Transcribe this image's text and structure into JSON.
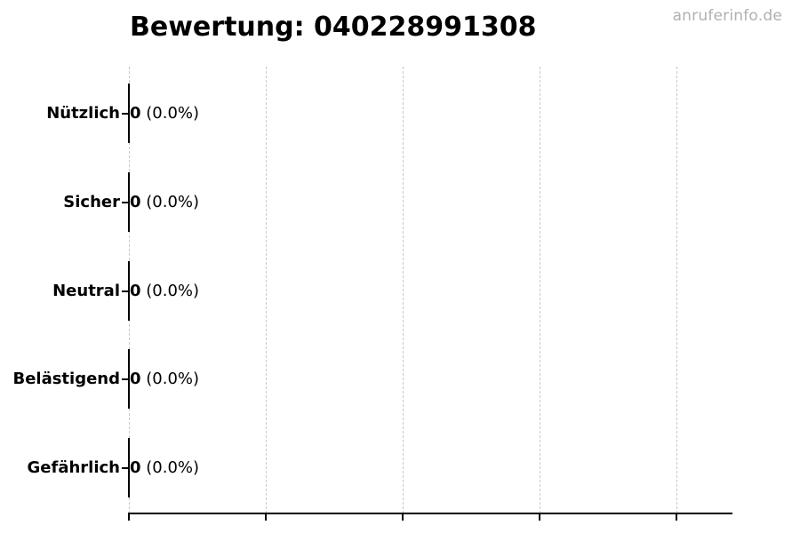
{
  "page": {
    "background": "#ffffff"
  },
  "watermark": {
    "text": "anruferinfo.de",
    "color": "#b0b0b0"
  },
  "chart_data": {
    "type": "bar",
    "orientation": "horizontal",
    "title": "Bewertung: 040228991308",
    "categories": [
      "Nützlich",
      "Sicher",
      "Neutral",
      "Belästigend",
      "Gefährlich"
    ],
    "values": [
      0,
      0,
      0,
      0,
      0
    ],
    "value_label_counts": [
      "0",
      "0",
      "0",
      "0",
      "0"
    ],
    "value_label_percents": [
      "(0.0%)",
      "(0.0%)",
      "(0.0%)",
      "(0.0%)",
      "(0.0%)"
    ],
    "xlabel": "",
    "ylabel": "",
    "x_tick_labels_visible": false,
    "x_gridline_count": 5,
    "grid": {
      "vertical": true,
      "style": "dashed",
      "color": "#c9c9c9"
    },
    "axis_color": "#000000",
    "bar_edge_color": "#000000",
    "text_color": "#000000",
    "legend": "none"
  }
}
